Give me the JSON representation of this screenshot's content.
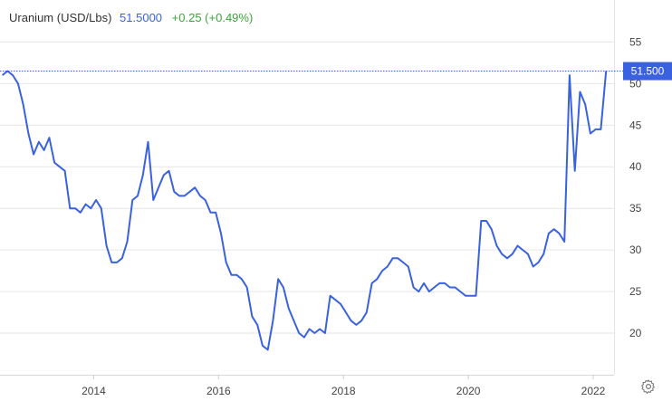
{
  "header": {
    "symbol": "Uranium (USD/Lbs)",
    "price": "51.5000",
    "change": "+0.25 (+0.49%)"
  },
  "colors": {
    "line": "#3a62e0",
    "change_positive": "#3aa63a",
    "grid": "#e6e6e6",
    "badge": "#3a62e0"
  },
  "icons": {
    "settings": "gear-icon"
  },
  "chart_data": {
    "type": "line",
    "title": "",
    "xlabel": "",
    "ylabel": "",
    "x_ticks": [
      "2014",
      "2016",
      "2018",
      "2020",
      "2022"
    ],
    "y_ticks": [
      20,
      25,
      30,
      35,
      40,
      45,
      50,
      55
    ],
    "ylim": [
      15,
      57
    ],
    "xlim": [
      "2012-07-01",
      "2022-05-01"
    ],
    "grid": "horizontal",
    "y_axis_side": "right",
    "last_value_label": "51.500",
    "series": [
      {
        "x": [
          "2012-07",
          "2012-08",
          "2012-09",
          "2012-10",
          "2012-11",
          "2012-12",
          "2013-01",
          "2013-02",
          "2013-03",
          "2013-04",
          "2013-05",
          "2013-06",
          "2013-07",
          "2013-08",
          "2013-09",
          "2013-10",
          "2013-11",
          "2013-12",
          "2014-01",
          "2014-02",
          "2014-03",
          "2014-04",
          "2014-05",
          "2014-06",
          "2014-07",
          "2014-08",
          "2014-09",
          "2014-10",
          "2014-11",
          "2014-12",
          "2015-01",
          "2015-02",
          "2015-03",
          "2015-04",
          "2015-05",
          "2015-06",
          "2015-07",
          "2015-08",
          "2015-09",
          "2015-10",
          "2015-11",
          "2015-12",
          "2016-01",
          "2016-02",
          "2016-03",
          "2016-04",
          "2016-05",
          "2016-06",
          "2016-07",
          "2016-08",
          "2016-09",
          "2016-10",
          "2016-11",
          "2016-12",
          "2017-01",
          "2017-02",
          "2017-03",
          "2017-04",
          "2017-05",
          "2017-06",
          "2017-07",
          "2017-08",
          "2017-09",
          "2017-10",
          "2017-11",
          "2017-12",
          "2018-01",
          "2018-02",
          "2018-03",
          "2018-04",
          "2018-05",
          "2018-06",
          "2018-07",
          "2018-08",
          "2018-09",
          "2018-10",
          "2018-11",
          "2018-12",
          "2019-01",
          "2019-02",
          "2019-03",
          "2019-04",
          "2019-05",
          "2019-06",
          "2019-07",
          "2019-08",
          "2019-09",
          "2019-10",
          "2019-11",
          "2019-12",
          "2020-01",
          "2020-02",
          "2020-03",
          "2020-04",
          "2020-05",
          "2020-06",
          "2020-07",
          "2020-08",
          "2020-09",
          "2020-10",
          "2020-11",
          "2020-12",
          "2021-01",
          "2021-02",
          "2021-03",
          "2021-04",
          "2021-05",
          "2021-06",
          "2021-07",
          "2021-08",
          "2021-09",
          "2021-10",
          "2021-11",
          "2021-12",
          "2022-01",
          "2022-02",
          "2022-03"
        ],
        "y": [
          51.0,
          51.5,
          51.0,
          50.0,
          47.5,
          44.0,
          41.5,
          43.0,
          42.0,
          43.5,
          40.5,
          40.0,
          39.5,
          35.0,
          35.0,
          34.5,
          35.5,
          35.0,
          36.0,
          35.0,
          30.5,
          28.5,
          28.5,
          29.0,
          31.0,
          36.0,
          36.5,
          39.0,
          43.0,
          36.0,
          37.5,
          39.0,
          39.5,
          37.0,
          36.5,
          36.5,
          37.0,
          37.5,
          36.5,
          36.0,
          34.5,
          34.5,
          32.0,
          28.5,
          27.0,
          27.0,
          26.5,
          25.5,
          22.0,
          21.0,
          18.5,
          18.0,
          21.5,
          26.5,
          25.5,
          23.0,
          21.5,
          20.0,
          19.5,
          20.5,
          20.0,
          20.5,
          20.0,
          24.5,
          24.0,
          23.5,
          22.5,
          21.5,
          21.0,
          21.5,
          22.5,
          26.0,
          26.5,
          27.5,
          28.0,
          29.0,
          29.0,
          28.5,
          28.0,
          25.5,
          25.0,
          26.0,
          25.0,
          25.5,
          26.0,
          26.0,
          25.5,
          25.5,
          25.0,
          24.5,
          24.5,
          24.5,
          33.5,
          33.5,
          32.5,
          30.5,
          29.5,
          29.0,
          29.5,
          30.5,
          30.0,
          29.5,
          28.0,
          28.5,
          29.5,
          32.0,
          32.5,
          32.0,
          31.0,
          51.0,
          39.5,
          49.0,
          47.5,
          44.0,
          44.5,
          44.5,
          51.5
        ]
      }
    ]
  }
}
